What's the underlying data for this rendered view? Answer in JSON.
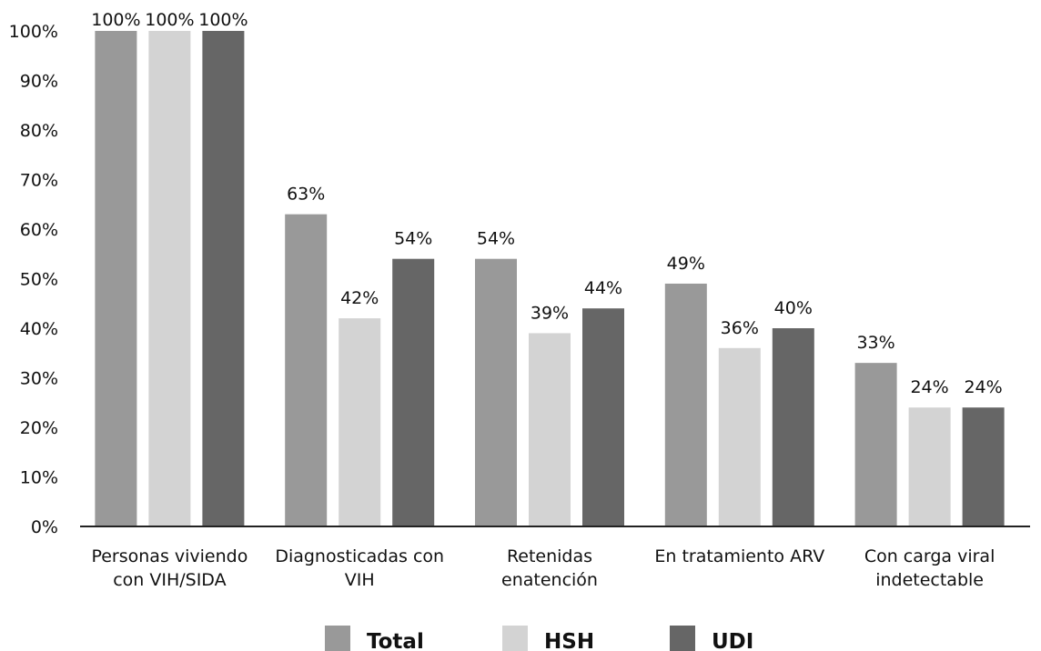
{
  "chart_data": {
    "type": "bar",
    "title": "",
    "xlabel": "",
    "ylabel": "",
    "ylim": [
      0,
      100
    ],
    "y_ticks": [
      "0%",
      "10%",
      "20%",
      "30%",
      "40%",
      "50%",
      "60%",
      "70%",
      "80%",
      "90%",
      "100%"
    ],
    "grid": false,
    "legend_position": "bottom",
    "categories": [
      [
        "Personas viviendo",
        "con VIH/SIDA"
      ],
      [
        "Diagnosticadas con",
        "VIH"
      ],
      [
        "Retenidas",
        "enatención"
      ],
      [
        "En tratamiento ARV"
      ],
      [
        "Con carga viral",
        "indetectable"
      ]
    ],
    "series": [
      {
        "name": "Total",
        "color": "#999999",
        "values": [
          100,
          63,
          54,
          49,
          33
        ],
        "labels": [
          "100%",
          "63%",
          "54%",
          "49%",
          "33%"
        ]
      },
      {
        "name": "HSH",
        "color": "#d3d3d3",
        "values": [
          100,
          42,
          39,
          36,
          24
        ],
        "labels": [
          "100%",
          "42%",
          "39%",
          "36%",
          "24%"
        ]
      },
      {
        "name": "UDI",
        "color": "#666666",
        "values": [
          100,
          54,
          44,
          40,
          24
        ],
        "labels": [
          "100%",
          "54%",
          "44%",
          "40%",
          "24%"
        ]
      }
    ]
  }
}
